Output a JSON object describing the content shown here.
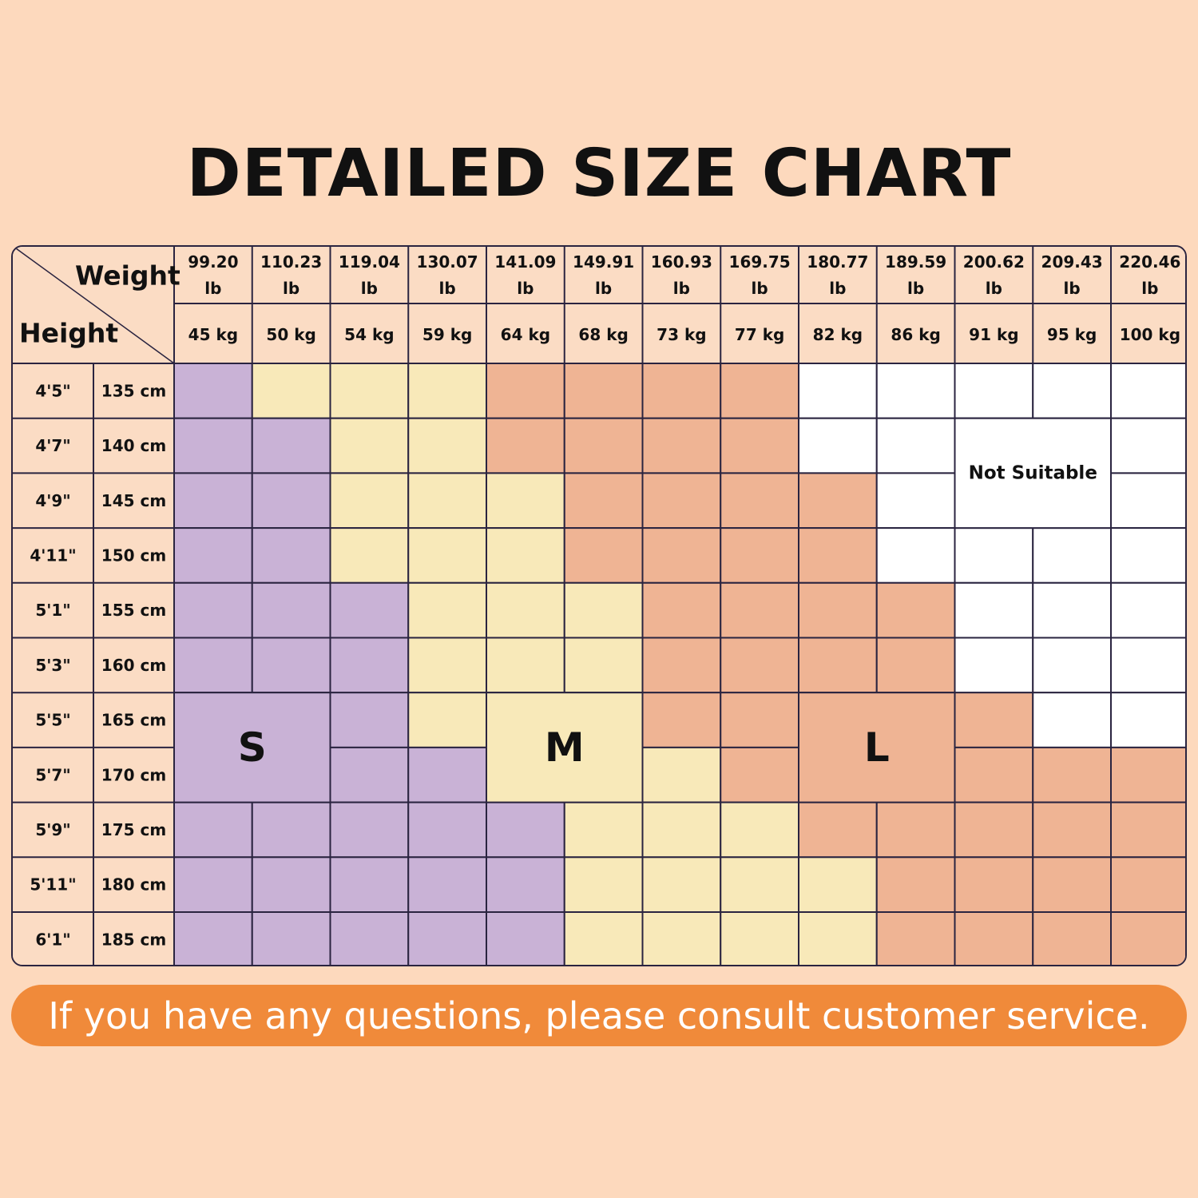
{
  "title": "DETAILED SIZE CHART",
  "footer": "If you have any questions, please consult customer service.",
  "chart_data": {
    "type": "table",
    "corner": {
      "top": "Weight",
      "bottom": "Height"
    },
    "weights": [
      {
        "lb": "99.20",
        "lb_unit": "lb",
        "kg": "45 kg"
      },
      {
        "lb": "110.23",
        "lb_unit": "lb",
        "kg": "50 kg"
      },
      {
        "lb": "119.04",
        "lb_unit": "lb",
        "kg": "54 kg"
      },
      {
        "lb": "130.07",
        "lb_unit": "lb",
        "kg": "59 kg"
      },
      {
        "lb": "141.09",
        "lb_unit": "lb",
        "kg": "64 kg"
      },
      {
        "lb": "149.91",
        "lb_unit": "lb",
        "kg": "68 kg"
      },
      {
        "lb": "160.93",
        "lb_unit": "lb",
        "kg": "73 kg"
      },
      {
        "lb": "169.75",
        "lb_unit": "lb",
        "kg": "77 kg"
      },
      {
        "lb": "180.77",
        "lb_unit": "lb",
        "kg": "82 kg"
      },
      {
        "lb": "189.59",
        "lb_unit": "lb",
        "kg": "86 kg"
      },
      {
        "lb": "200.62",
        "lb_unit": "lb",
        "kg": "91 kg"
      },
      {
        "lb": "209.43",
        "lb_unit": "lb",
        "kg": "95 kg"
      },
      {
        "lb": "220.46",
        "lb_unit": "lb",
        "kg": "100 kg"
      }
    ],
    "heights": [
      {
        "ft": "4'5\"",
        "cm": "135 cm"
      },
      {
        "ft": "4'7\"",
        "cm": "140 cm"
      },
      {
        "ft": "4'9\"",
        "cm": "145 cm"
      },
      {
        "ft": "4'11\"",
        "cm": "150 cm"
      },
      {
        "ft": "5'1\"",
        "cm": "155 cm"
      },
      {
        "ft": "5'3\"",
        "cm": "160 cm"
      },
      {
        "ft": "5'5\"",
        "cm": "165 cm"
      },
      {
        "ft": "5'7\"",
        "cm": "170 cm"
      },
      {
        "ft": "5'9\"",
        "cm": "175 cm"
      },
      {
        "ft": "5'11\"",
        "cm": "180 cm"
      },
      {
        "ft": "6'1\"",
        "cm": "185 cm"
      }
    ],
    "grid": [
      [
        "S",
        "M",
        "M",
        "M",
        "L",
        "L",
        "L",
        "L",
        "N",
        "N",
        "N",
        "N",
        "N"
      ],
      [
        "S",
        "S",
        "M",
        "M",
        "L",
        "L",
        "L",
        "L",
        "N",
        "N",
        "N",
        "N",
        "N"
      ],
      [
        "S",
        "S",
        "M",
        "M",
        "M",
        "L",
        "L",
        "L",
        "L",
        "N",
        "N",
        "N",
        "N"
      ],
      [
        "S",
        "S",
        "M",
        "M",
        "M",
        "L",
        "L",
        "L",
        "L",
        "N",
        "N",
        "N",
        "N"
      ],
      [
        "S",
        "S",
        "S",
        "M",
        "M",
        "M",
        "L",
        "L",
        "L",
        "L",
        "N",
        "N",
        "N"
      ],
      [
        "S",
        "S",
        "S",
        "M",
        "M",
        "M",
        "L",
        "L",
        "L",
        "L",
        "N",
        "N",
        "N"
      ],
      [
        "S",
        "S",
        "S",
        "M",
        "M",
        "M",
        "L",
        "L",
        "L",
        "L",
        "L",
        "N",
        "N"
      ],
      [
        "S",
        "S",
        "S",
        "S",
        "M",
        "M",
        "M",
        "L",
        "L",
        "L",
        "L",
        "L",
        "L"
      ],
      [
        "S",
        "S",
        "S",
        "S",
        "S",
        "M",
        "M",
        "M",
        "L",
        "L",
        "L",
        "L",
        "L"
      ],
      [
        "S",
        "S",
        "S",
        "S",
        "S",
        "M",
        "M",
        "M",
        "M",
        "L",
        "L",
        "L",
        "L"
      ],
      [
        "S",
        "S",
        "S",
        "S",
        "S",
        "M",
        "M",
        "M",
        "M",
        "L",
        "L",
        "L",
        "L"
      ]
    ],
    "labels": [
      {
        "text": "S",
        "row": 6,
        "col": 0,
        "rows": 2,
        "cols": 2
      },
      {
        "text": "M",
        "row": 6,
        "col": 4,
        "rows": 2,
        "cols": 2
      },
      {
        "text": "L",
        "row": 6,
        "col": 8,
        "rows": 2,
        "cols": 2
      },
      {
        "text": "Not Suitable",
        "row": 1,
        "col": 10,
        "rows": 2,
        "cols": 2
      }
    ],
    "colors": {
      "S": "#c9b2d6",
      "M": "#f8e9b9",
      "L": "#efb494",
      "N": "#ffffff",
      "header": "#fbdcc4",
      "grid_line": "#2a2440"
    }
  }
}
